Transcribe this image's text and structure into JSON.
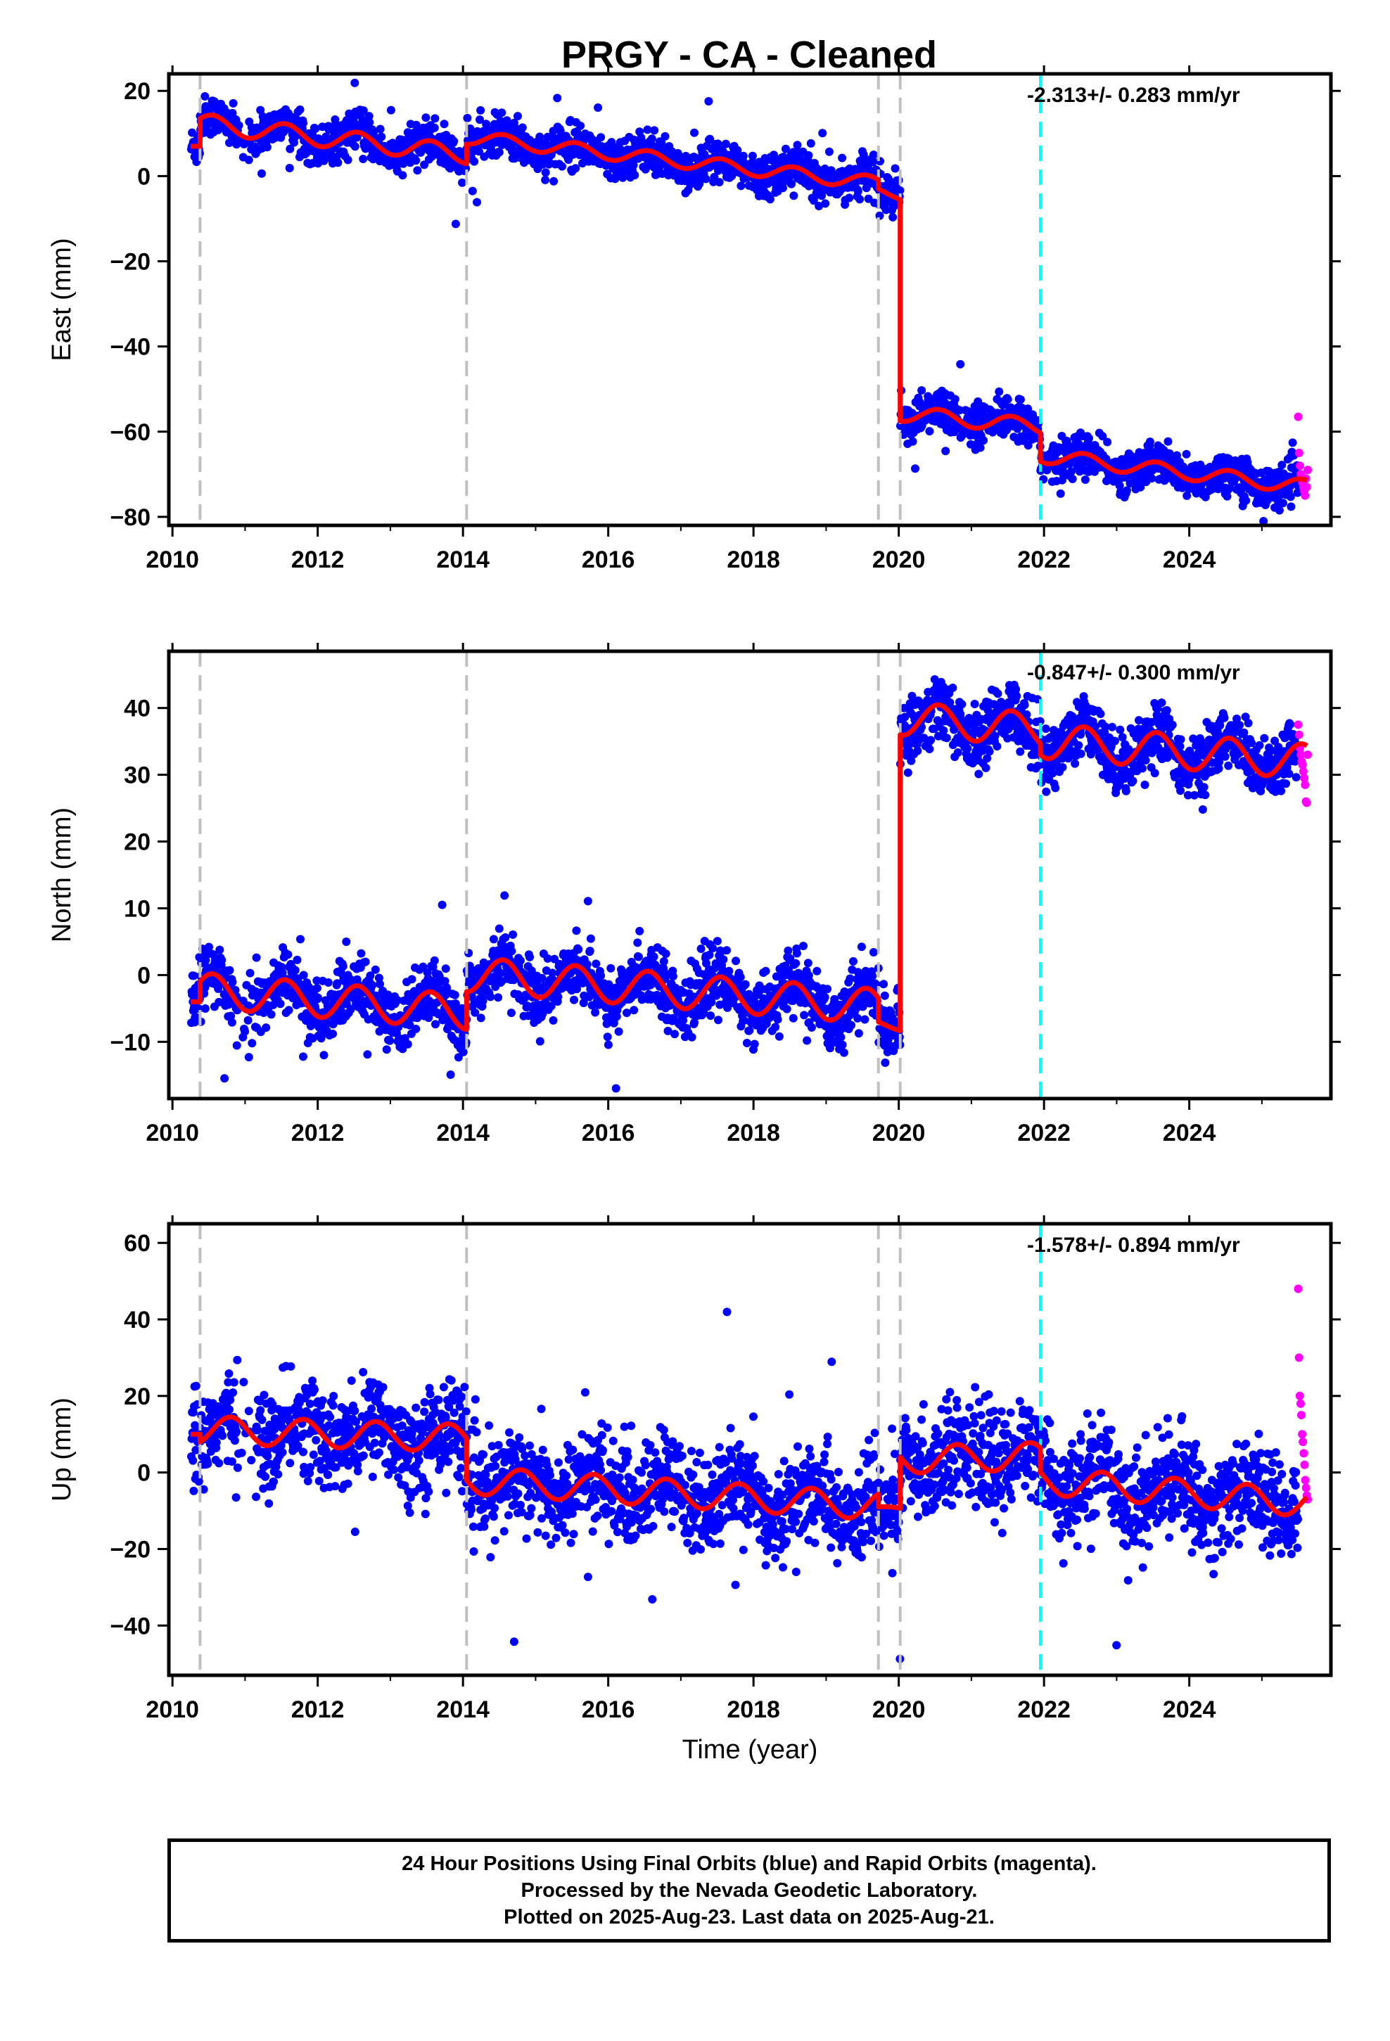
{
  "title": "PRGY  - CA - Cleaned",
  "footer": {
    "line1": "24 Hour Positions Using Final Orbits (blue) and Rapid Orbits (magenta).",
    "line2": "Processed by the Nevada Geodetic Laboratory.",
    "line3": "Plotted on 2025-Aug-23. Last data on 2025-Aug-21."
  },
  "colors": {
    "final_orbits": "#0000ff",
    "rapid_orbits": "#ff00ff",
    "model": "#ff0000",
    "equipment_change": "#c0c0c0",
    "earthquake": "#00ffff"
  },
  "chart_data": [
    {
      "type": "scatter",
      "ylabel": "East (mm)",
      "xlabel": "",
      "xlim": [
        2009.95,
        2025.95
      ],
      "ylim": [
        -82,
        24
      ],
      "xticks": [
        2010,
        2012,
        2014,
        2016,
        2018,
        2020,
        2022,
        2024
      ],
      "yticks": [
        20,
        0,
        -20,
        -40,
        -60,
        -80
      ],
      "rate_label": "-2.313+/- 0.283 mm/yr",
      "step_lines_gray": [
        2010.38,
        2014.05,
        2019.72,
        2020.02
      ],
      "step_line_cyan": 2021.95,
      "model": {
        "segments": [
          {
            "t0": 2010.25,
            "t1": 2010.38,
            "y0": 7,
            "trend": 0,
            "amp": 0
          },
          {
            "t0": 2010.38,
            "t1": 2014.05,
            "y0": 13.5,
            "trend": -2.0,
            "amp": 2.2,
            "phase": 0.55
          },
          {
            "t0": 2014.05,
            "t1": 2019.72,
            "y0": 7.5,
            "trend": -1.9,
            "amp": 1.6,
            "phase": 0.55
          },
          {
            "t0": 2019.72,
            "t1": 2020.02,
            "y0": -3,
            "trend": -6,
            "amp": 0.5,
            "phase": 0.55
          },
          {
            "t0": 2020.02,
            "t1": 2021.95,
            "y0": -57.5,
            "trend": -1.6,
            "amp": 1.8,
            "phase": 0.55
          },
          {
            "t0": 2021.95,
            "t1": 2025.62,
            "y0": -67,
            "trend": -2.0,
            "amp": 1.7,
            "phase": 0.55
          }
        ]
      },
      "scatter": {
        "noise": 2.3,
        "outlier_rate": 0.008,
        "outlier_scale": 4
      },
      "rapid": {
        "t0": 2025.5,
        "t1": 2025.63,
        "values": [
          -56.5,
          -65,
          -68,
          -70,
          -71,
          -72,
          -73,
          -74,
          -75,
          -71,
          -73,
          -69
        ]
      }
    },
    {
      "type": "scatter",
      "ylabel": "North (mm)",
      "xlabel": "",
      "xlim": [
        2009.95,
        2025.95
      ],
      "ylim": [
        -18.5,
        48.5
      ],
      "xticks": [
        2010,
        2012,
        2014,
        2016,
        2018,
        2020,
        2022,
        2024
      ],
      "yticks": [
        40,
        30,
        20,
        10,
        0,
        -10
      ],
      "rate_label": "-0.847+/- 0.300 mm/yr",
      "step_lines_gray": [
        2010.38,
        2014.05,
        2019.72,
        2020.02
      ],
      "step_line_cyan": 2021.95,
      "model": {
        "segments": [
          {
            "t0": 2010.25,
            "t1": 2010.38,
            "y0": -4,
            "trend": 0,
            "amp": 0
          },
          {
            "t0": 2010.38,
            "t1": 2014.05,
            "y0": -1.0,
            "trend": -0.9,
            "amp": 2.6,
            "phase": 0.55
          },
          {
            "t0": 2014.05,
            "t1": 2019.72,
            "y0": -2.5,
            "trend": -0.85,
            "amp": 2.6,
            "phase": 0.55
          },
          {
            "t0": 2019.72,
            "t1": 2020.02,
            "y0": -7,
            "trend": -2,
            "amp": 0.5,
            "phase": 0.55
          },
          {
            "t0": 2020.02,
            "t1": 2021.95,
            "y0": 36,
            "trend": -0.9,
            "amp": 2.5,
            "phase": 0.55
          },
          {
            "t0": 2021.95,
            "t1": 2025.62,
            "y0": 33,
            "trend": -0.85,
            "amp": 2.6,
            "phase": 0.55
          }
        ]
      },
      "scatter": {
        "noise": 2.3,
        "outlier_rate": 0.01,
        "outlier_scale": 3
      },
      "rapid": {
        "t0": 2025.5,
        "t1": 2025.63,
        "values": [
          37.5,
          36,
          34,
          33,
          32,
          31.5,
          30.5,
          29.5,
          28.5,
          26,
          25.8,
          33
        ]
      }
    },
    {
      "type": "scatter",
      "ylabel": "Up (mm)",
      "xlabel": "Time (year)",
      "xlim": [
        2009.95,
        2025.95
      ],
      "ylim": [
        -53,
        65
      ],
      "xticks": [
        2010,
        2012,
        2014,
        2016,
        2018,
        2020,
        2022,
        2024
      ],
      "yticks": [
        60,
        40,
        20,
        0,
        -20,
        -40
      ],
      "rate_label": "-1.578+/- 0.894 mm/yr",
      "step_lines_gray": [
        2010.38,
        2014.05,
        2019.72,
        2020.02
      ],
      "step_line_cyan": 2021.95,
      "model": {
        "segments": [
          {
            "t0": 2010.25,
            "t1": 2010.38,
            "y0": 10,
            "trend": 0,
            "amp": 0
          },
          {
            "t0": 2010.38,
            "t1": 2014.05,
            "y0": 8,
            "trend": -0.6,
            "amp": 3.6,
            "phase": 0.8
          },
          {
            "t0": 2014.05,
            "t1": 2019.72,
            "y0": -2,
            "trend": -1.2,
            "amp": 3.6,
            "phase": 0.8
          },
          {
            "t0": 2019.72,
            "t1": 2020.02,
            "y0": -9,
            "trend": 0,
            "amp": 0.5,
            "phase": 0.8
          },
          {
            "t0": 2020.02,
            "t1": 2021.95,
            "y0": 4,
            "trend": 0.5,
            "amp": 3.6,
            "phase": 0.8
          },
          {
            "t0": 2021.95,
            "t1": 2025.62,
            "y0": 0,
            "trend": -1.6,
            "amp": 3.6,
            "phase": 0.8
          }
        ]
      },
      "scatter": {
        "noise": 6.2,
        "outlier_rate": 0.012,
        "outlier_scale": 3.5
      },
      "rapid": {
        "t0": 2025.5,
        "t1": 2025.63,
        "values": [
          48,
          30,
          20,
          18,
          15,
          10,
          8,
          5,
          2,
          -2,
          -4,
          -6,
          -7
        ]
      }
    }
  ]
}
